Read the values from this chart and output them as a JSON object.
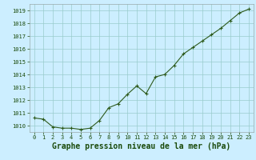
{
  "x": [
    0,
    1,
    2,
    3,
    4,
    5,
    6,
    7,
    8,
    9,
    10,
    11,
    12,
    13,
    14,
    15,
    16,
    17,
    18,
    19,
    20,
    21,
    22,
    23
  ],
  "y": [
    1010.6,
    1010.5,
    1009.9,
    1009.8,
    1009.8,
    1009.7,
    1009.8,
    1010.4,
    1011.4,
    1011.7,
    1012.45,
    1013.1,
    1012.5,
    1013.8,
    1014.0,
    1014.7,
    1015.6,
    1016.1,
    1016.6,
    1017.1,
    1017.6,
    1018.2,
    1018.8,
    1019.1
  ],
  "line_color": "#2d5a1b",
  "marker_color": "#2d5a1b",
  "bg_color": "#cceeff",
  "grid_color": "#99cccc",
  "title": "Graphe pression niveau de la mer (hPa)",
  "title_color": "#1a4a0a",
  "ylim_min": 1009.5,
  "ylim_max": 1019.5,
  "yticks": [
    1010,
    1011,
    1012,
    1013,
    1014,
    1015,
    1016,
    1017,
    1018,
    1019
  ],
  "xticks": [
    0,
    1,
    2,
    3,
    4,
    5,
    6,
    7,
    8,
    9,
    10,
    11,
    12,
    13,
    14,
    15,
    16,
    17,
    18,
    19,
    20,
    21,
    22,
    23
  ],
  "tick_color": "#1a4a0a",
  "tick_fontsize": 5.0,
  "title_fontsize": 7.0,
  "spine_color": "#99aaaa"
}
